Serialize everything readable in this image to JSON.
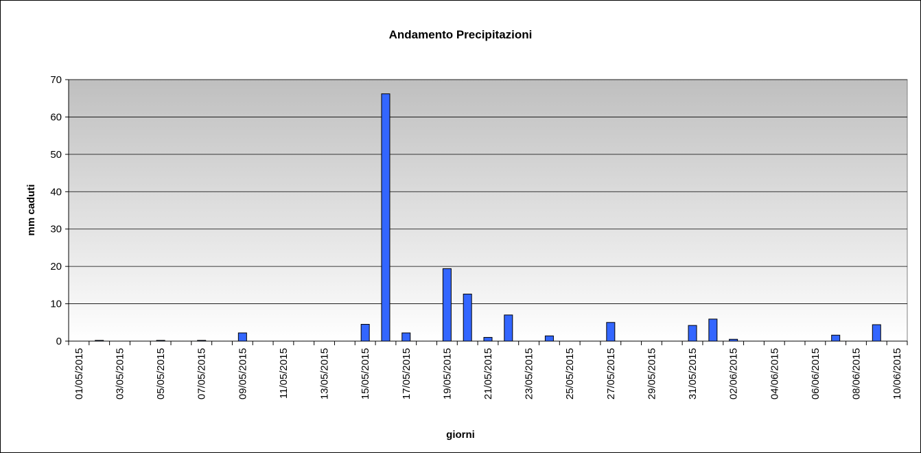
{
  "chart_data": {
    "type": "bar",
    "title": "Andamento Precipitazioni",
    "x_label": "giorni",
    "y_label": "mm caduti",
    "categories": [
      "01/05/2015",
      null,
      "03/05/2015",
      null,
      "05/05/2015",
      null,
      "07/05/2015",
      null,
      "09/05/2015",
      null,
      "11/05/2015",
      null,
      "13/05/2015",
      null,
      "15/05/2015",
      null,
      "17/05/2015",
      null,
      "19/05/2015",
      null,
      "21/05/2015",
      null,
      "23/05/2015",
      null,
      "25/05/2015",
      null,
      "27/05/2015",
      null,
      "29/05/2015",
      null,
      "31/05/2015",
      null,
      "02/06/2015",
      null,
      "04/06/2015",
      null,
      "06/06/2015",
      null,
      "08/06/2015",
      null,
      "10/06/2015"
    ],
    "values": [
      0,
      0.2,
      0,
      0,
      0.2,
      0,
      0.2,
      0,
      2.2,
      0,
      0,
      0,
      0,
      0,
      4.5,
      66.2,
      2.2,
      0,
      19.4,
      12.6,
      1.0,
      7.0,
      0,
      1.4,
      0,
      0,
      5.0,
      0,
      0,
      0,
      4.2,
      5.9,
      0.5,
      0,
      0,
      0,
      0,
      1.6,
      0,
      4.4,
      0
    ],
    "color": "#3366ff",
    "ylim": [
      0,
      70
    ],
    "yticks": [
      0,
      10,
      20,
      30,
      40,
      50,
      60,
      70
    ],
    "grid": true
  }
}
